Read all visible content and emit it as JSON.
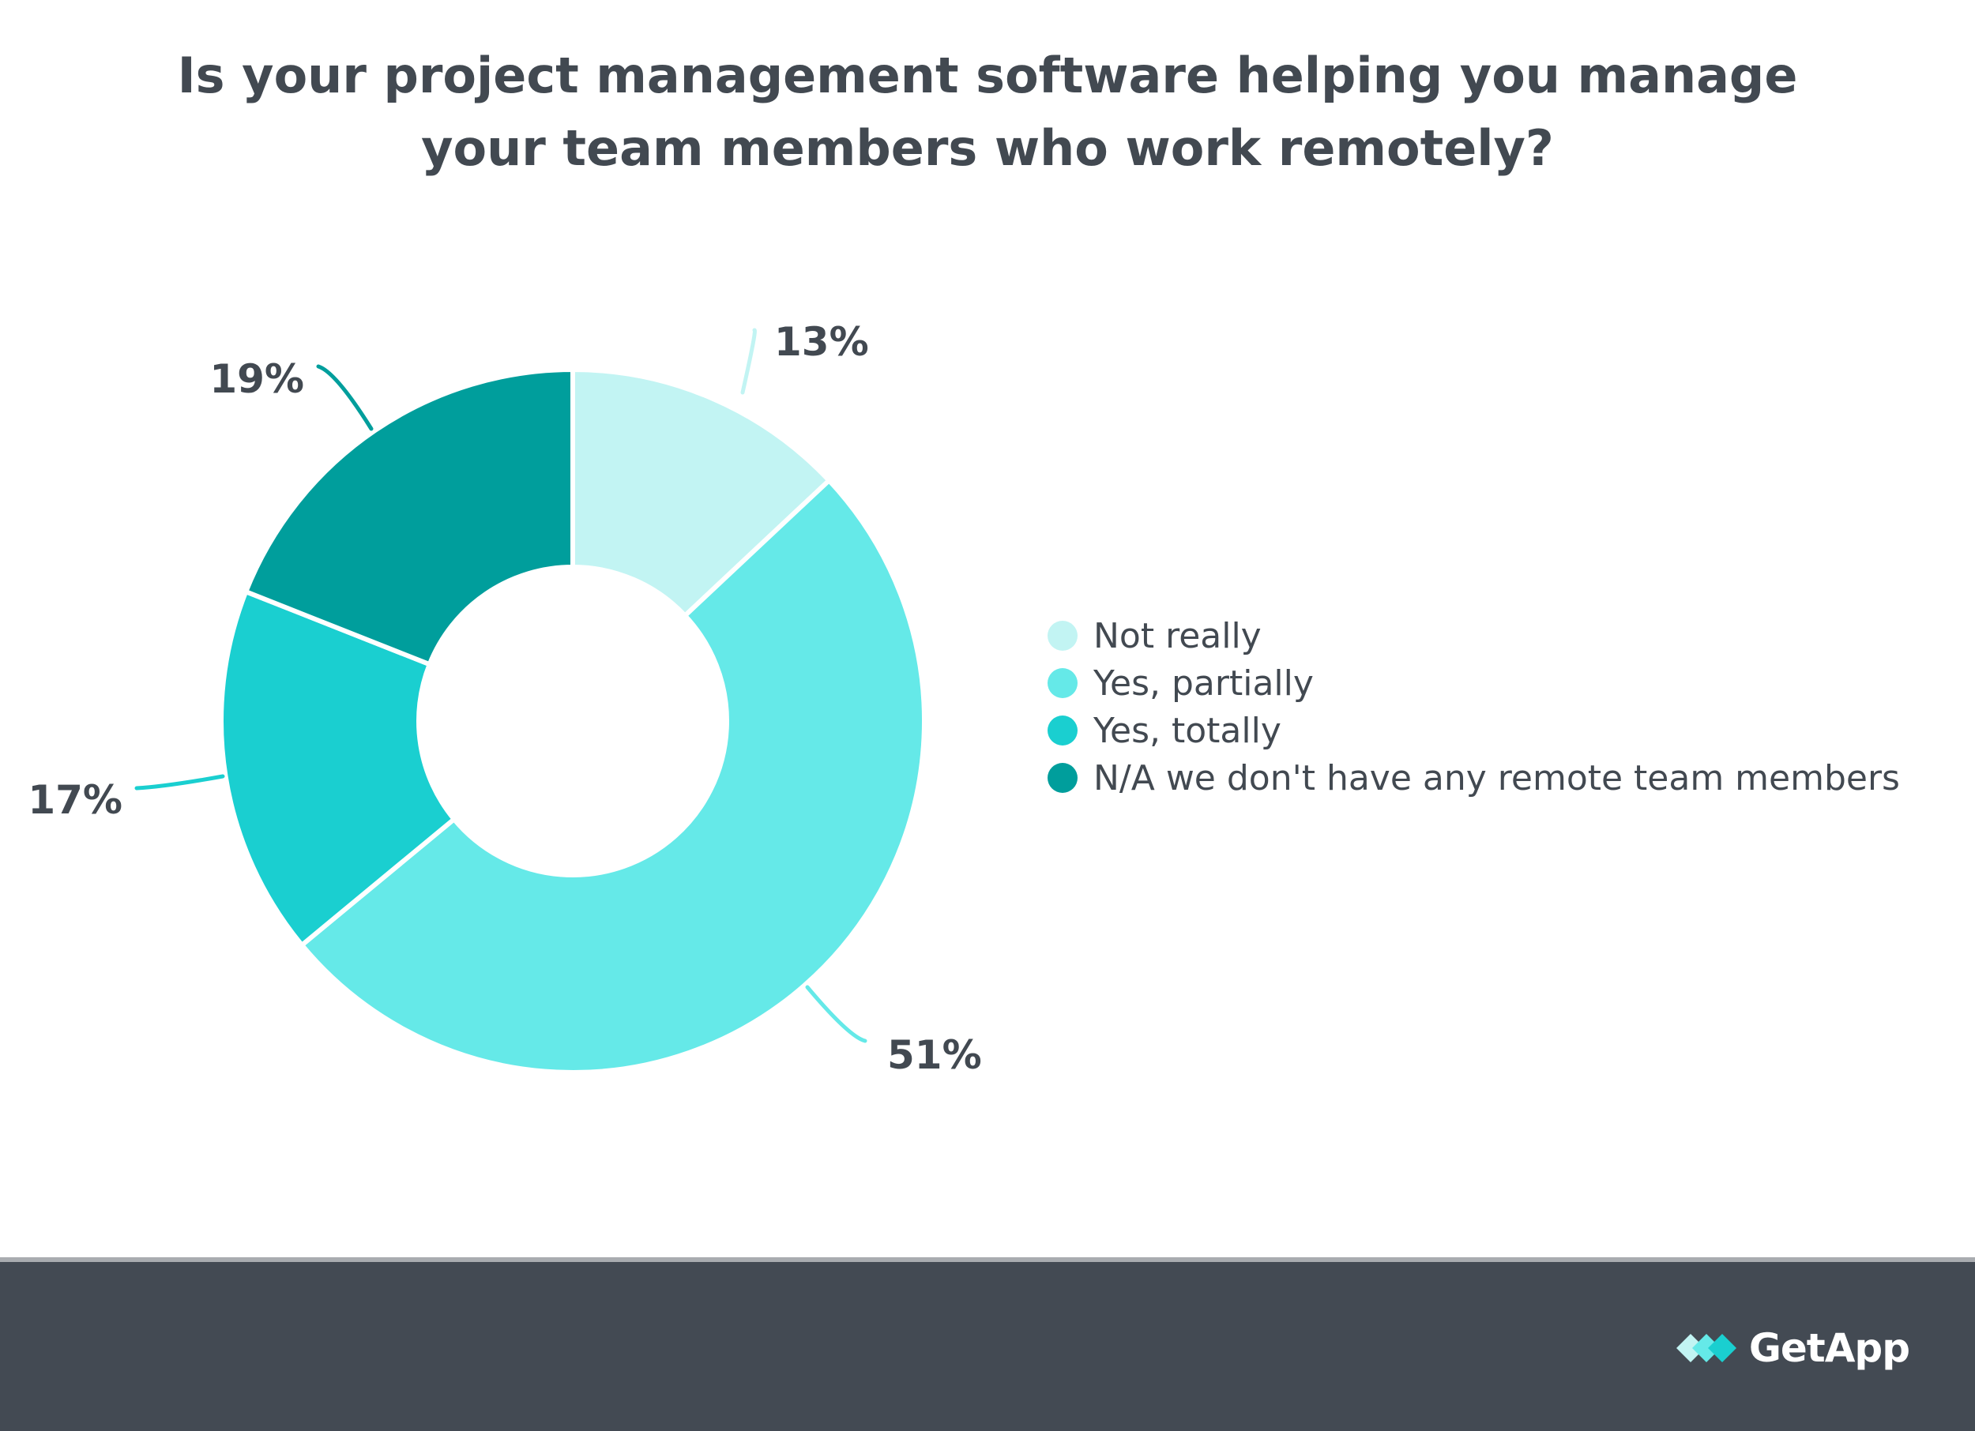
{
  "title_lines": [
    "Is your project management software helping you manage",
    "your team members who work remotely?"
  ],
  "chart_data": {
    "type": "pie",
    "variant": "donut",
    "title": "Is your project management software helping you manage your team members who work remotely?",
    "series": [
      {
        "name": "Not really",
        "value": 13,
        "label": "13%",
        "color": "#c2f4f3"
      },
      {
        "name": "Yes, partially",
        "value": 51,
        "label": "51%",
        "color": "#65e9e8"
      },
      {
        "name": "Yes, totally",
        "value": 17,
        "label": "17%",
        "color": "#1acfd0"
      },
      {
        "name": "N/A we don't have any remote team members",
        "value": 19,
        "label": "19%",
        "color": "#009e9c"
      }
    ],
    "legend_position": "right"
  },
  "brand": {
    "name": "GetApp",
    "icon": "getapp-logo-icon"
  }
}
